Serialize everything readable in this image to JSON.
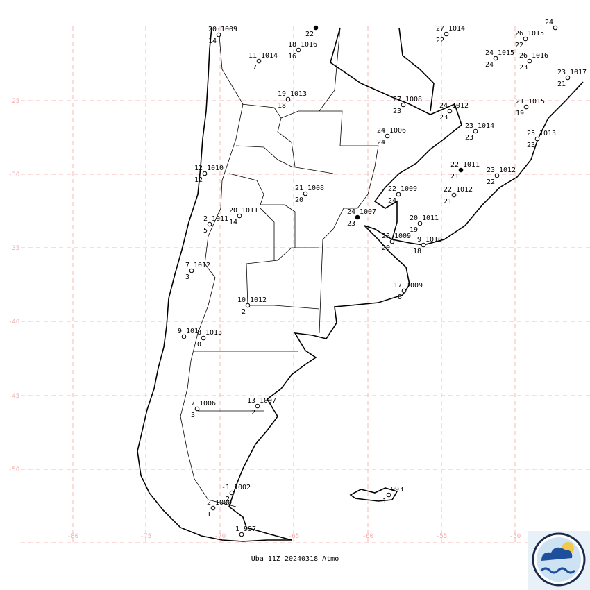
{
  "grid": {
    "lat_labels": [
      "-25",
      "-30",
      "-35",
      "-40",
      "-45",
      "-50"
    ],
    "lon_labels": [
      "-80",
      "-75",
      "-70",
      "-65",
      "-60",
      "-55",
      "-50"
    ]
  },
  "stations": [
    {
      "temp": "20",
      "pressure": "1009",
      "dewpoint": "14"
    },
    {
      "dewpoint": "22"
    },
    {
      "temp": "18",
      "pressure": "1016",
      "dewpoint": "16"
    },
    {
      "temp": "11",
      "pressure": "1014",
      "dewpoint": "7"
    },
    {
      "temp": "19",
      "pressure": "1013",
      "dewpoint": "18"
    },
    {
      "temp": "27",
      "pressure": "1014",
      "dewpoint": "22"
    },
    {
      "temp": "26",
      "pressure": "1015",
      "dewpoint": "22"
    },
    {
      "temp": "24"
    },
    {
      "temp": "24",
      "pressure": "1015",
      "dewpoint": "24"
    },
    {
      "temp": "26",
      "pressure": "1016",
      "dewpoint": "23"
    },
    {
      "temp": "23",
      "pressure": "1017",
      "dewpoint": "21"
    },
    {
      "temp": "21",
      "pressure": "1015",
      "dewpoint": "19"
    },
    {
      "temp": "27",
      "pressure": "1008",
      "dewpoint": "23"
    },
    {
      "temp": "24",
      "pressure": "1012",
      "dewpoint": "23"
    },
    {
      "temp": "23",
      "pressure": "1014",
      "dewpoint": "23"
    },
    {
      "temp": "25",
      "pressure": "1013",
      "dewpoint": "23"
    },
    {
      "temp": "24",
      "pressure": "1006",
      "dewpoint": "24"
    },
    {
      "temp": "22",
      "pressure": "1011",
      "dewpoint": "21"
    },
    {
      "temp": "23",
      "pressure": "1012",
      "dewpoint": "22"
    },
    {
      "temp": "22",
      "pressure": "1012",
      "dewpoint": "21"
    },
    {
      "temp": "22",
      "pressure": "1009",
      "dewpoint": "24"
    },
    {
      "temp": "12",
      "pressure": "1010",
      "dewpoint": "12"
    },
    {
      "temp": "21",
      "pressure": "1008",
      "dewpoint": "20"
    },
    {
      "temp": "24",
      "pressure": "1007",
      "dewpoint": "23"
    },
    {
      "temp": "20",
      "pressure": "1011",
      "dewpoint": "14"
    },
    {
      "temp": "2",
      "pressure": "1011",
      "dewpoint": "5"
    },
    {
      "temp": "20",
      "pressure": "1011",
      "dewpoint": "19"
    },
    {
      "temp": "23",
      "pressure": "1009",
      "dewpoint": "20"
    },
    {
      "temp": "9",
      "pressure": "1010",
      "dewpoint": "18"
    },
    {
      "temp": "7",
      "pressure": "1012",
      "dewpoint": "3"
    },
    {
      "temp": "17",
      "pressure": "1009",
      "dewpoint": "8"
    },
    {
      "temp": "10",
      "pressure": "1012",
      "dewpoint": "2"
    },
    {
      "temp": "8",
      "pressure": "1013",
      "dewpoint": "0"
    },
    {
      "temp": "9",
      "pressure": "101"
    },
    {
      "temp": "7",
      "pressure": "1006",
      "dewpoint": "3"
    },
    {
      "temp": "13",
      "pressure": "1007",
      "dewpoint": "2"
    },
    {
      "temp": "-1",
      "pressure": "1002",
      "dewpoint": "2"
    },
    {
      "temp": "2",
      "pressure": "1000",
      "dewpoint": "1"
    },
    {
      "temp": "1",
      "pressure": "997"
    },
    {
      "pressure": "993",
      "dewpoint": "1"
    }
  ],
  "footer": "Uba 11Z 20240318 Atmo"
}
